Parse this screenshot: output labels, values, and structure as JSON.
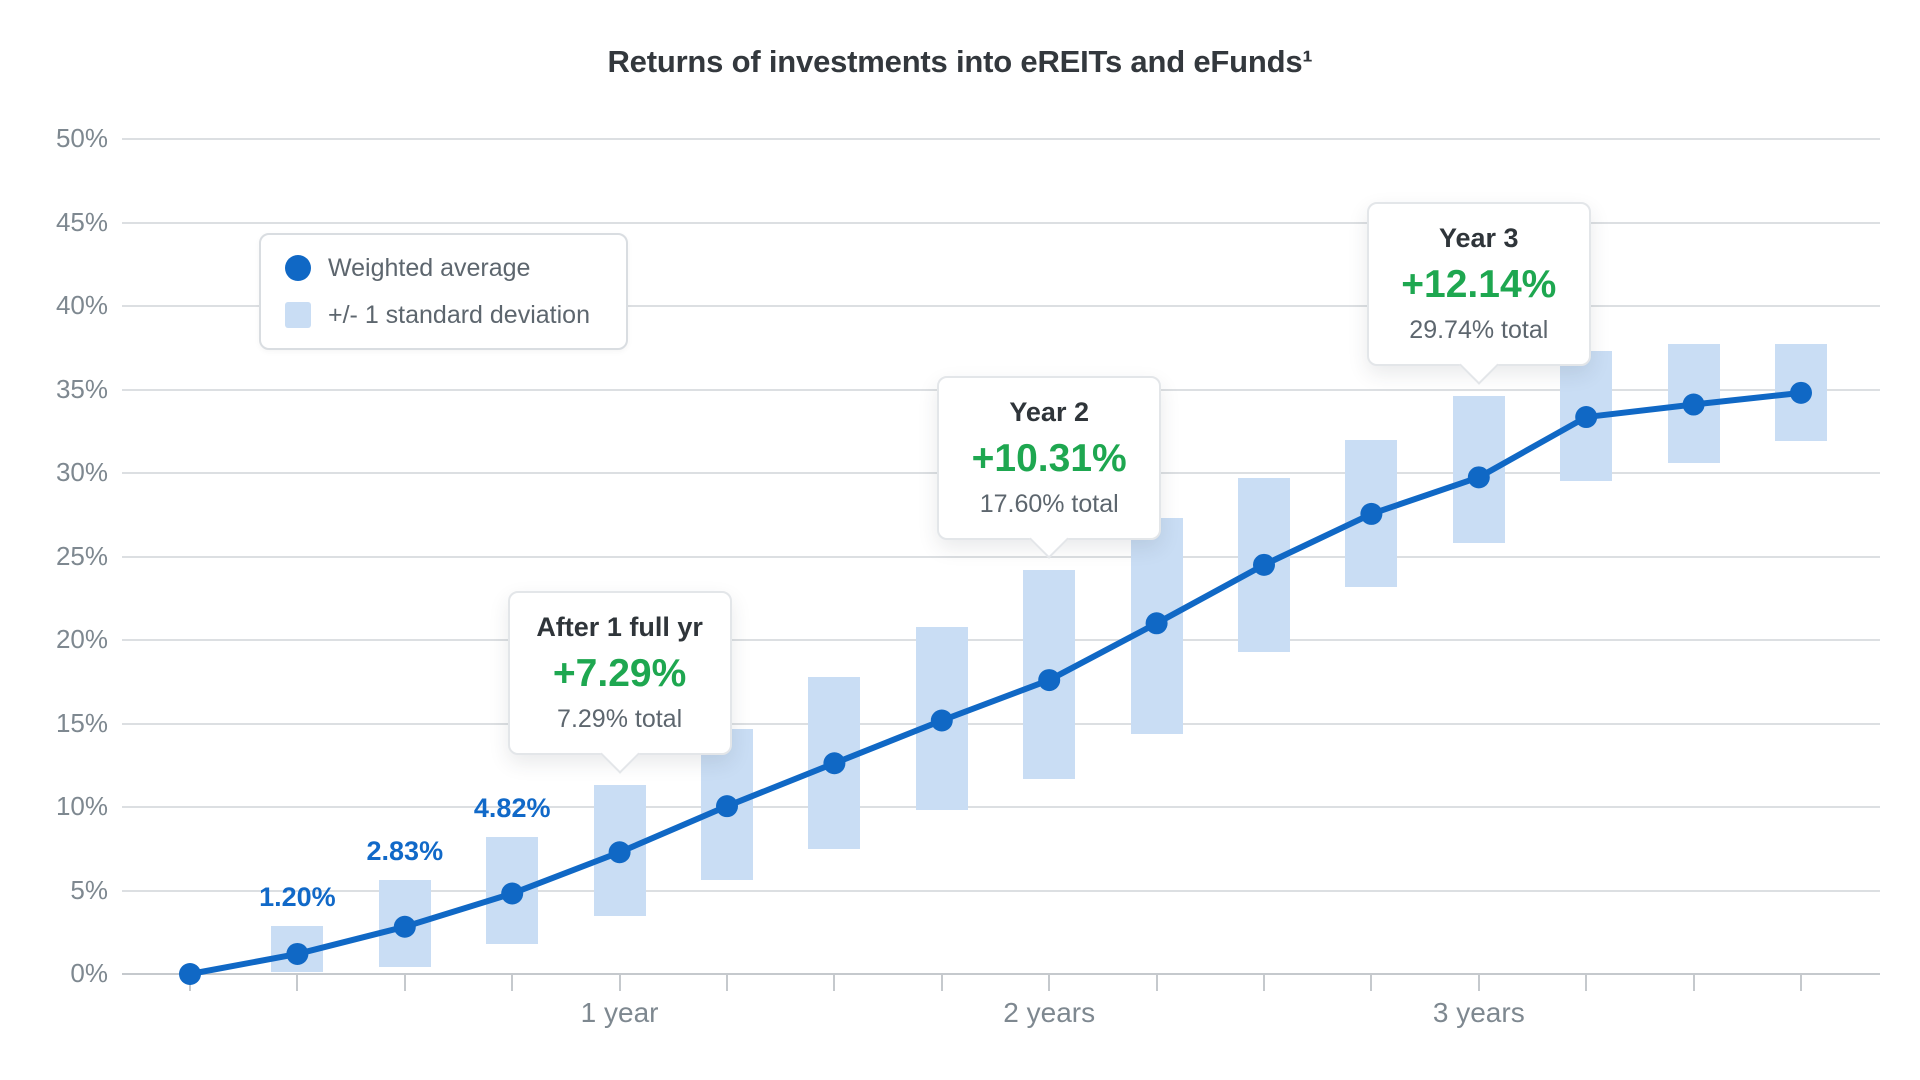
{
  "page": {
    "title": "Returns of investments into eREITs and eFunds¹"
  },
  "legend": {
    "items": [
      {
        "label": "Weighted average",
        "marker": "dot"
      },
      {
        "label": "+/- 1 standard deviation",
        "marker": "square"
      }
    ]
  },
  "colors": {
    "line_blue": "#1068C5",
    "band_blue": "#C9DDF4",
    "point_label_blue": "#1169C8",
    "annotation_green": "#1EA750",
    "gridline_gray": "#DCDFE2",
    "axis_gray": "#C5C9CD",
    "title_text": "#33383D",
    "secondary_text": "#5D666E",
    "axis_label_text": "#7E8890"
  },
  "chart_data": {
    "type": "line",
    "title": "Returns of investments into eREITs and eFunds¹",
    "x_unit": "quarters since investment",
    "x_tick_labels": [
      {
        "index": 4,
        "label": "1 year"
      },
      {
        "index": 8,
        "label": "2 years"
      },
      {
        "index": 12,
        "label": "3 years"
      }
    ],
    "y_axis": {
      "min": 0,
      "max": 50,
      "step": 5,
      "suffix": "%",
      "grid": true
    },
    "legend_position": "top-left",
    "series": [
      {
        "name": "Weighted average",
        "type": "line",
        "values": [
          0,
          1.2,
          2.83,
          4.82,
          7.29,
          10.05,
          12.62,
          15.18,
          17.6,
          21.0,
          24.5,
          27.55,
          29.74,
          33.35,
          34.1,
          34.8
        ]
      },
      {
        "name": "+/- 1 standard deviation",
        "type": "band",
        "ranges": [
          null,
          [
            0.1,
            2.9
          ],
          [
            0.4,
            5.6
          ],
          [
            1.8,
            8.2
          ],
          [
            3.5,
            11.3
          ],
          [
            5.6,
            14.7
          ],
          [
            7.5,
            17.8
          ],
          [
            9.8,
            20.8
          ],
          [
            11.7,
            24.2
          ],
          [
            14.4,
            27.3
          ],
          [
            19.3,
            29.7
          ],
          [
            23.2,
            32.0
          ],
          [
            25.8,
            34.6
          ],
          [
            29.5,
            37.3
          ],
          [
            30.6,
            37.7
          ],
          [
            31.9,
            37.7
          ]
        ]
      }
    ],
    "point_labels": [
      {
        "index": 1,
        "text": "1.20%"
      },
      {
        "index": 2,
        "text": "2.83%"
      },
      {
        "index": 3,
        "text": "4.82%"
      }
    ],
    "annotations": [
      {
        "index": 4,
        "title": "After 1 full yr",
        "value": "+7.29%",
        "total": "7.29% total"
      },
      {
        "index": 8,
        "title": "Year 2",
        "value": "+10.31%",
        "total": "17.60% total"
      },
      {
        "index": 12,
        "title": "Year 3",
        "value": "+12.14%",
        "total": "29.74% total"
      }
    ]
  }
}
